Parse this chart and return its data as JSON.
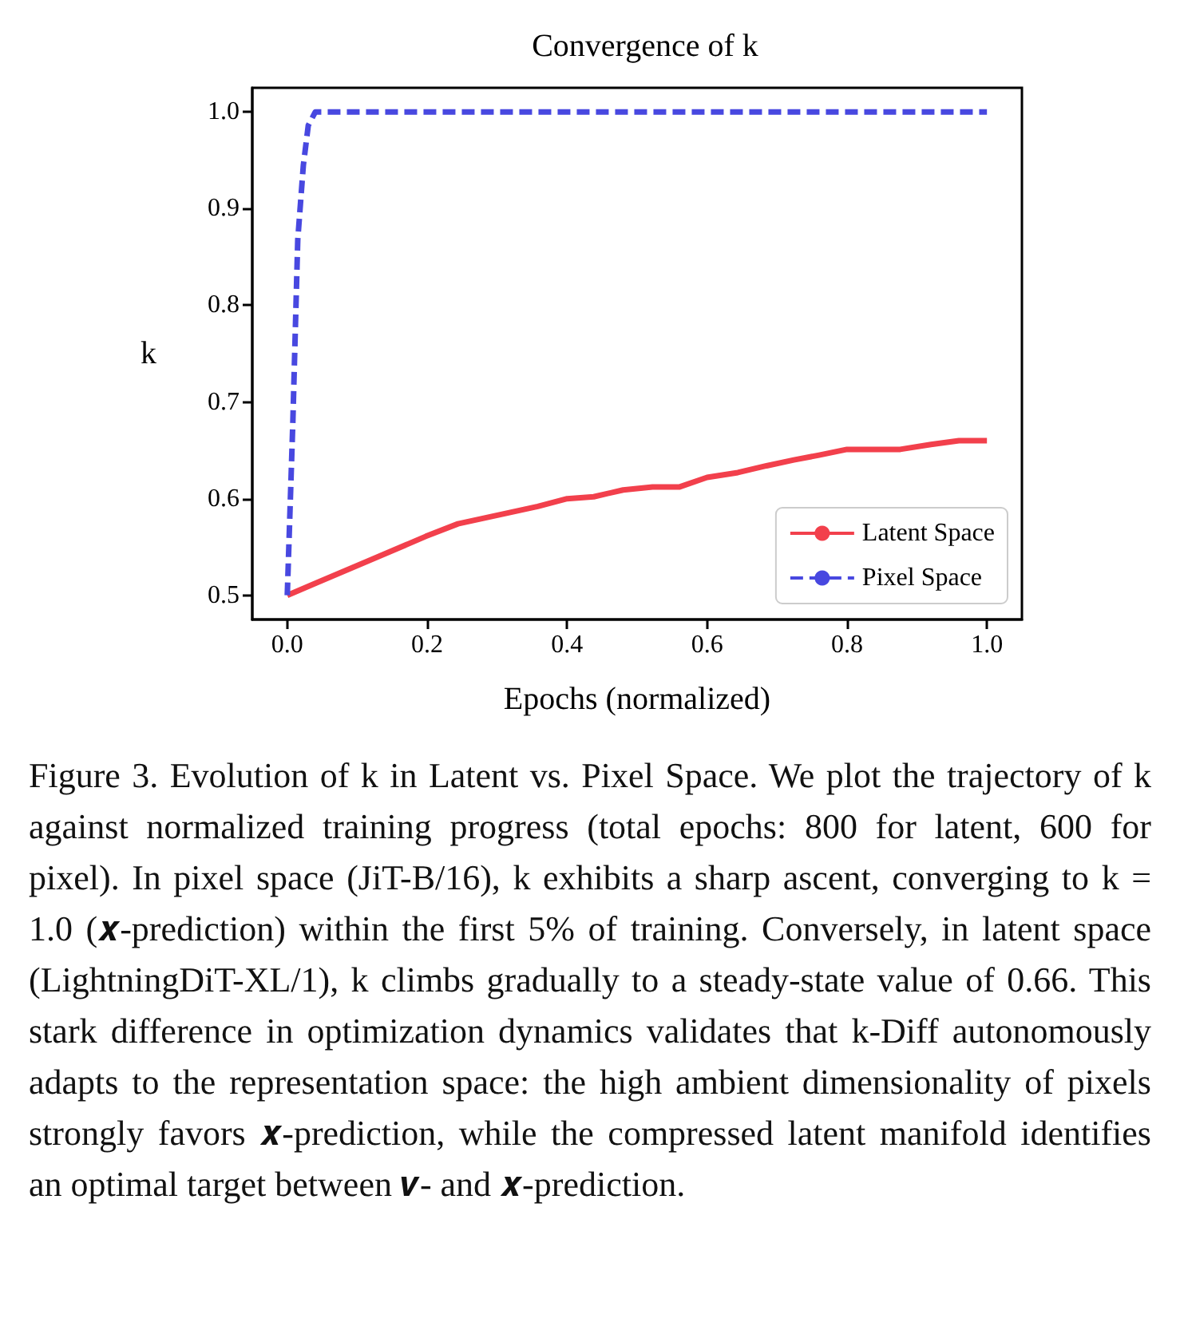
{
  "chart_data": {
    "type": "line",
    "title": "Convergence of k",
    "xlabel": "Epochs (normalized)",
    "ylabel": "k",
    "xlim": [
      -0.05,
      1.05
    ],
    "ylim": [
      0.475,
      1.025
    ],
    "xticks": [
      {
        "value": 0,
        "label": "0.0"
      },
      0.2,
      0.4,
      0.6,
      0.8,
      {
        "value": 1,
        "label": "1.0"
      }
    ],
    "yticks": [
      0.5,
      0.6,
      0.7,
      0.8,
      0.9,
      {
        "value": 1,
        "label": "1.0"
      }
    ],
    "grid": false,
    "legend": "bottom right",
    "marker": "none",
    "series": [
      {
        "name": "Latent Space",
        "color": "#f2404c",
        "line_style": "solid",
        "x": [
          0,
          0.042,
          0.114,
          0.198,
          0.244,
          0.32,
          0.358,
          0.4,
          0.438,
          0.48,
          0.522,
          0.56,
          0.6,
          0.644,
          0.685,
          0.724,
          0.76,
          0.8,
          0.876,
          0.92,
          0.96,
          1.0
        ],
        "values": [
          0.5,
          0.513,
          0.535,
          0.561,
          0.574,
          0.586,
          0.592,
          0.6,
          0.602,
          0.609,
          0.612,
          0.612,
          0.622,
          0.627,
          0.634,
          0.64,
          0.645,
          0.651,
          0.651,
          0.656,
          0.66,
          0.66
        ]
      },
      {
        "name": "Pixel Space",
        "color": "#4848e0",
        "line_style": "dashed",
        "x": [
          0,
          0.008,
          0.015,
          0.023,
          0.03,
          0.04,
          1.0
        ],
        "values": [
          0.5,
          0.68,
          0.868,
          0.945,
          0.986,
          1.0,
          1.0
        ]
      }
    ],
    "annotations": [
      "Figure 3. Evolution of k in Latent vs. Pixel Space. We plot the trajectory of k against normalized training progress (total epochs: 800 for latent, 600 for pixel). In pixel space (JiT-B/16), k exhibits a sharp ascent, converging to k = 1.0 (𝒙-prediction) within the first 5% of training. Conversely, in latent space (LightningDiT-XL/1), k climbs gradually to a steady-state value of 0.66. This stark difference in optimization dynamics validates that k-Diff autonomously adapts to the representation space: the high ambient dimensionality of pixels strongly favors 𝒙-prediction, while the compressed latent manifold identifies an optimal target between 𝒗- and 𝒙-prediction."
    ]
  }
}
